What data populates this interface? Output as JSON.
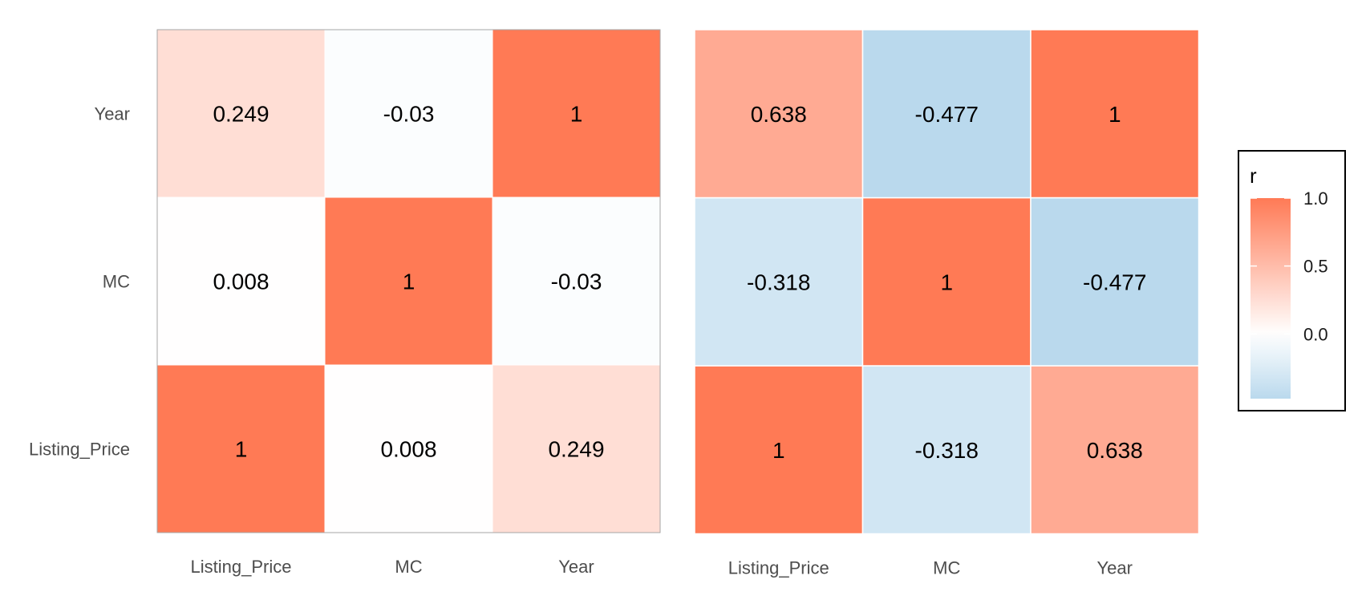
{
  "chart_data": {
    "type": "heatmap",
    "panels": [
      {
        "x_categories": [
          "Listing_Price",
          "MC",
          "Year"
        ],
        "y_categories": [
          "Listing_Price",
          "MC",
          "Year"
        ],
        "values": [
          [
            1,
            0.008,
            0.249
          ],
          [
            0.008,
            1,
            -0.03
          ],
          [
            0.249,
            -0.03,
            1
          ]
        ],
        "labels": [
          [
            "1",
            "0.008",
            "0.249"
          ],
          [
            "0.008",
            "1",
            "-0.03"
          ],
          [
            "0.249",
            "-0.03",
            "1"
          ]
        ]
      },
      {
        "x_categories": [
          "Listing_Price",
          "MC",
          "Year"
        ],
        "y_categories": [
          "Listing_Price",
          "MC",
          "Year"
        ],
        "values": [
          [
            1,
            -0.318,
            0.638
          ],
          [
            -0.318,
            1,
            -0.477
          ],
          [
            0.638,
            -0.477,
            1
          ]
        ],
        "labels": [
          [
            "1",
            "-0.318",
            "0.638"
          ],
          [
            "-0.318",
            "1",
            "-0.477"
          ],
          [
            "0.638",
            "-0.477",
            "1"
          ]
        ]
      }
    ],
    "legend": {
      "title": "r",
      "position": "right",
      "range": [
        -0.477,
        1
      ],
      "ticks": [
        0.0,
        0.5,
        1.0
      ],
      "tick_labels": [
        "0.0",
        "0.5",
        "1.0"
      ],
      "colors": {
        "low": "#b7d7ec",
        "mid": "#ffffff",
        "high": "#ff7a55"
      }
    }
  }
}
